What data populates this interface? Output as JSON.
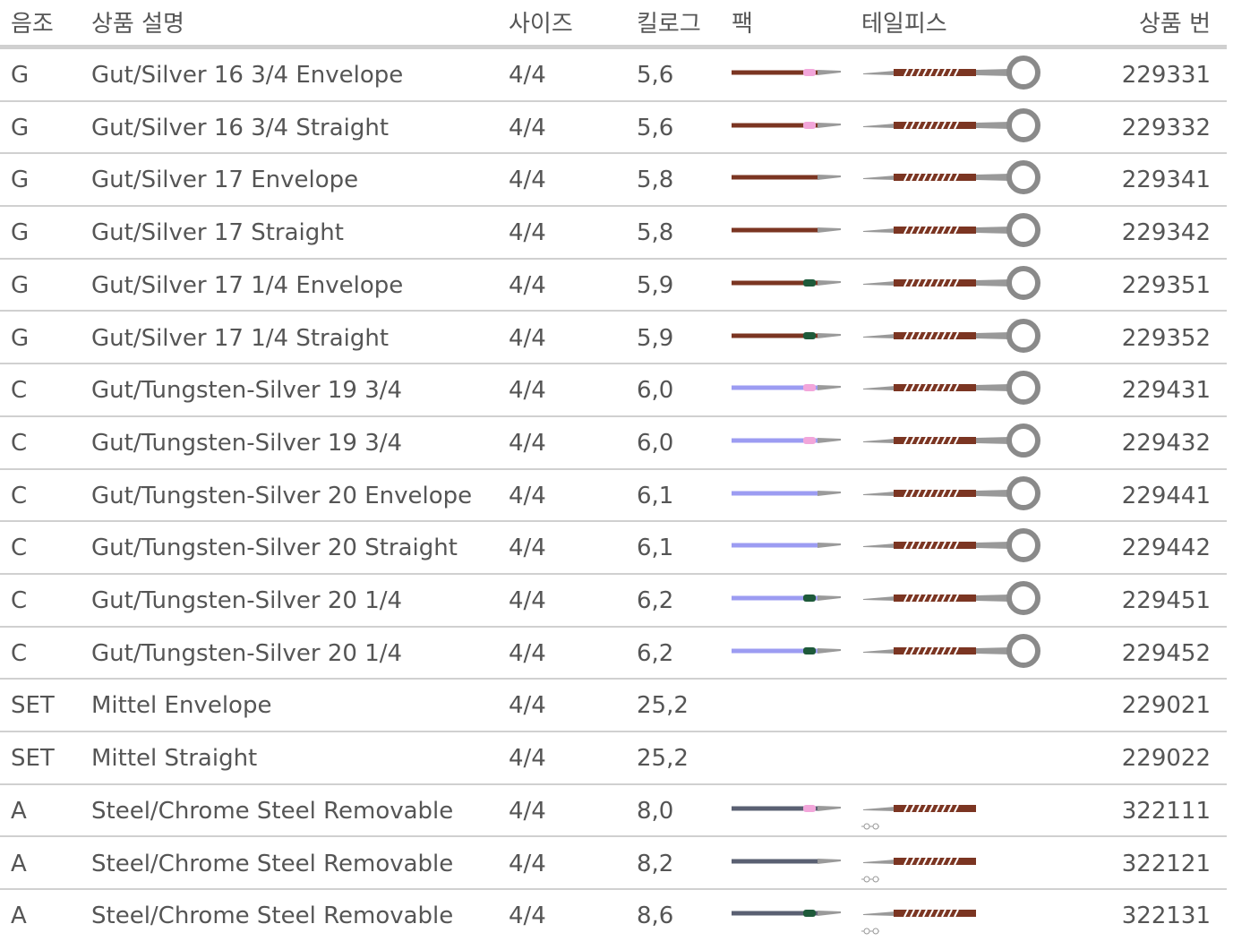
{
  "table": {
    "headers": [
      "음조",
      "상품 설명",
      "사이즈",
      "킬로그",
      "팩",
      "테일피스",
      "상품 번"
    ],
    "rows": [
      {
        "note": "G",
        "description": "Gut/Silver 16 3/4 Envelope",
        "size": "4/4",
        "kg": "5,6",
        "number": "229331",
        "string_color": "#7b3522",
        "tip_color": "#f2a6da",
        "tailpiece": "ring"
      },
      {
        "note": "G",
        "description": "Gut/Silver 16 3/4 Straight",
        "size": "4/4",
        "kg": "5,6",
        "number": "229332",
        "string_color": "#7b3522",
        "tip_color": "#f2a6da",
        "tailpiece": "ring"
      },
      {
        "note": "G",
        "description": "Gut/Silver 17 Envelope",
        "size": "4/4",
        "kg": "5,8",
        "number": "229341",
        "string_color": "#7b3522",
        "tip_color": null,
        "tailpiece": "ring"
      },
      {
        "note": "G",
        "description": "Gut/Silver 17 Straight",
        "size": "4/4",
        "kg": "5,8",
        "number": "229342",
        "string_color": "#7b3522",
        "tip_color": null,
        "tailpiece": "ring"
      },
      {
        "note": "G",
        "description": "Gut/Silver 17 1/4 Envelope",
        "size": "4/4",
        "kg": "5,9",
        "number": "229351",
        "string_color": "#7b3522",
        "tip_color": "#1e5a3a",
        "tailpiece": "ring"
      },
      {
        "note": "G",
        "description": "Gut/Silver 17 1/4 Straight",
        "size": "4/4",
        "kg": "5,9",
        "number": "229352",
        "string_color": "#7b3522",
        "tip_color": "#1e5a3a",
        "tailpiece": "ring"
      },
      {
        "note": "C",
        "description": "Gut/Tungsten-Silver 19 3/4",
        "size": "4/4",
        "kg": "6,0",
        "number": "229431",
        "string_color": "#9c9cf2",
        "tip_color": "#f2a6da",
        "tailpiece": "ring"
      },
      {
        "note": "C",
        "description": "Gut/Tungsten-Silver 19 3/4",
        "size": "4/4",
        "kg": "6,0",
        "number": "229432",
        "string_color": "#9c9cf2",
        "tip_color": "#f2a6da",
        "tailpiece": "ring"
      },
      {
        "note": "C",
        "description": "Gut/Tungsten-Silver 20 Envelope",
        "size": "4/4",
        "kg": "6,1",
        "number": "229441",
        "string_color": "#9c9cf2",
        "tip_color": null,
        "tailpiece": "ring"
      },
      {
        "note": "C",
        "description": "Gut/Tungsten-Silver 20 Straight",
        "size": "4/4",
        "kg": "6,1",
        "number": "229442",
        "string_color": "#9c9cf2",
        "tip_color": null,
        "tailpiece": "ring"
      },
      {
        "note": "C",
        "description": "Gut/Tungsten-Silver 20 1/4",
        "size": "4/4",
        "kg": "6,2",
        "number": "229451",
        "string_color": "#9c9cf2",
        "tip_color": "#1e5a3a",
        "tailpiece": "ring"
      },
      {
        "note": "C",
        "description": "Gut/Tungsten-Silver 20 1/4",
        "size": "4/4",
        "kg": "6,2",
        "number": "229452",
        "string_color": "#9c9cf2",
        "tip_color": "#1e5a3a",
        "tailpiece": "ring"
      },
      {
        "note": "SET",
        "description": "Mittel Envelope",
        "size": "4/4",
        "kg": "25,2",
        "number": "229021",
        "string_color": null,
        "tip_color": null,
        "tailpiece": null
      },
      {
        "note": "SET",
        "description": "Mittel Straight",
        "size": "4/4",
        "kg": "25,2",
        "number": "229022",
        "string_color": null,
        "tip_color": null,
        "tailpiece": null
      },
      {
        "note": "A",
        "description": "Steel/Chrome Steel Removable",
        "size": "4/4",
        "kg": "8,0",
        "number": "322111",
        "string_color": "#5a6072",
        "tip_color": "#f2a6da",
        "tailpiece": "removable"
      },
      {
        "note": "A",
        "description": "Steel/Chrome Steel Removable",
        "size": "4/4",
        "kg": "8,2",
        "number": "322121",
        "string_color": "#5a6072",
        "tip_color": null,
        "tailpiece": "removable"
      },
      {
        "note": "A",
        "description": "Steel/Chrome Steel Removable",
        "size": "4/4",
        "kg": "8,6",
        "number": "322131",
        "string_color": "#5a6072",
        "tip_color": "#1e5a3a",
        "tailpiece": "removable"
      }
    ]
  }
}
